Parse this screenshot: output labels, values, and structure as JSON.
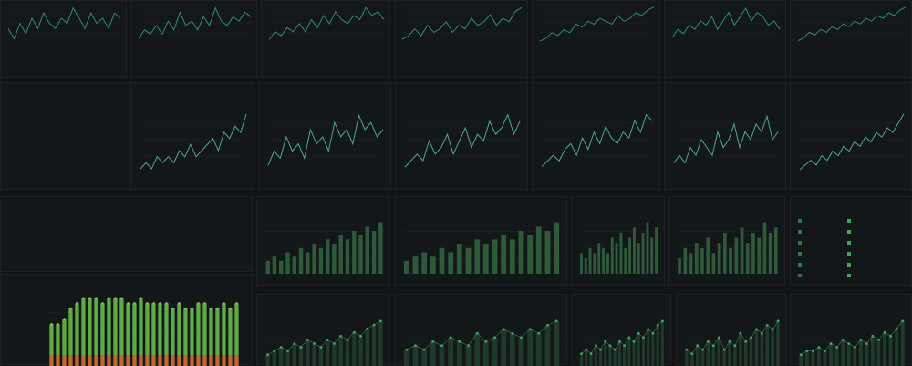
{
  "colors": {
    "background": "#121416",
    "panel": "#141719",
    "line": "#2b8c7a",
    "line_accent": "#4aa89a",
    "bar_green": "#2e5a3a",
    "bar_bright": "#5faa45",
    "bar_orange": "#c4662f",
    "dot_green": "#3ea85a"
  },
  "row1": {
    "panels": [
      {
        "title": "",
        "subtitle": "",
        "ticks": [
          "",
          "",
          ""
        ],
        "caption": "",
        "series": [
          6,
          4,
          7,
          5,
          8,
          6,
          9,
          7,
          6,
          8,
          7,
          10,
          8,
          6,
          9,
          7,
          8,
          6,
          9,
          8
        ]
      },
      {
        "title": "",
        "subtitle": "",
        "ticks": [
          "",
          "",
          ""
        ],
        "caption": "",
        "series": [
          5,
          7,
          6,
          8,
          6,
          9,
          7,
          11,
          8,
          9,
          7,
          10,
          8,
          12,
          9,
          8,
          10,
          9,
          11,
          10
        ]
      },
      {
        "title": "",
        "subtitle": "",
        "ticks": [
          "",
          "",
          ""
        ],
        "caption": "",
        "series": [
          4,
          6,
          5,
          7,
          6,
          8,
          6,
          9,
          7,
          10,
          8,
          11,
          9,
          8,
          10,
          9,
          12,
          10,
          11,
          9
        ]
      },
      {
        "title": "",
        "subtitle": "",
        "ticks": [
          "",
          "",
          ""
        ],
        "caption": "",
        "series": [
          5,
          6,
          8,
          6,
          9,
          7,
          8,
          10,
          7,
          9,
          8,
          11,
          9,
          10,
          12,
          9,
          11,
          10,
          13,
          14
        ]
      },
      {
        "title": "",
        "subtitle": "",
        "ticks": [
          "",
          "",
          ""
        ],
        "caption": "",
        "series": [
          3,
          4,
          6,
          5,
          7,
          6,
          9,
          8,
          10,
          9,
          11,
          10,
          9,
          12,
          10,
          11,
          13,
          12,
          14,
          15
        ]
      },
      {
        "title": "",
        "subtitle": "",
        "ticks": [
          "",
          "",
          ""
        ],
        "caption": "",
        "series": [
          6,
          8,
          7,
          9,
          8,
          10,
          9,
          11,
          8,
          10,
          12,
          9,
          11,
          13,
          10,
          12,
          11,
          9,
          10,
          8
        ]
      },
      {
        "title": "",
        "subtitle": "",
        "ticks": [
          "",
          "",
          ""
        ],
        "caption": "",
        "series": [
          4,
          5,
          7,
          6,
          8,
          7,
          9,
          8,
          10,
          9,
          11,
          10,
          12,
          11,
          13,
          12,
          14,
          13,
          15,
          16
        ]
      }
    ]
  },
  "summary": {
    "title": "",
    "subtitle": "",
    "lines": [
      "",
      "",
      "",
      "",
      "",
      "",
      "",
      ""
    ],
    "badge": ""
  },
  "row2": {
    "panels": [
      {
        "title": "",
        "subtitle": "",
        "caption": "",
        "series": [
          3,
          4,
          3,
          5,
          4,
          5,
          4,
          6,
          5,
          7,
          5,
          6,
          7,
          8,
          6,
          9,
          8,
          10,
          9,
          12
        ]
      },
      {
        "title": "",
        "subtitle": "",
        "caption": "",
        "series": [
          5,
          7,
          6,
          9,
          7,
          8,
          6,
          10,
          8,
          9,
          7,
          11,
          9,
          10,
          8,
          12,
          10,
          11,
          9,
          10
        ]
      },
      {
        "title": "",
        "subtitle": "",
        "caption": "",
        "series": [
          4,
          5,
          6,
          5,
          8,
          6,
          7,
          9,
          6,
          8,
          10,
          7,
          9,
          8,
          11,
          9,
          10,
          12,
          9,
          11
        ]
      },
      {
        "title": "",
        "subtitle": "",
        "caption": "",
        "series": [
          5,
          6,
          7,
          6,
          8,
          9,
          7,
          10,
          8,
          11,
          9,
          12,
          10,
          9,
          11,
          10,
          13,
          11,
          14,
          13
        ]
      },
      {
        "title": "",
        "subtitle": "",
        "caption": "",
        "series": [
          6,
          7,
          6,
          8,
          7,
          9,
          8,
          7,
          10,
          8,
          9,
          11,
          8,
          10,
          9,
          11,
          10,
          12,
          9,
          10
        ]
      },
      {
        "title": "",
        "subtitle": "",
        "caption": "",
        "series": [
          3,
          4,
          5,
          4,
          6,
          5,
          7,
          6,
          8,
          7,
          9,
          8,
          10,
          9,
          11,
          10,
          12,
          11,
          13,
          15
        ]
      }
    ]
  },
  "section": {
    "title": "",
    "lines": [
      "",
      "",
      ""
    ]
  },
  "row3": {
    "panels": [
      {
        "title": "",
        "caption": "",
        "values": [
          3,
          4,
          3,
          5,
          4,
          6,
          5,
          7,
          6,
          8,
          7,
          9,
          8,
          10,
          9,
          11,
          10,
          12
        ]
      },
      {
        "title": "",
        "caption": "",
        "values": [
          3,
          4,
          5,
          4,
          6,
          5,
          7,
          6,
          8,
          7,
          8,
          9,
          8,
          10,
          9,
          11,
          10,
          12
        ]
      },
      {
        "title": "",
        "caption": "",
        "values": [
          4,
          3,
          5,
          4,
          6,
          5,
          4,
          7,
          6,
          8,
          5,
          7,
          9,
          6,
          8,
          10,
          7,
          9
        ]
      },
      {
        "title": "",
        "caption": "",
        "values": [
          3,
          5,
          4,
          6,
          5,
          7,
          4,
          6,
          8,
          5,
          7,
          9,
          6,
          8,
          7,
          10,
          8,
          9
        ]
      }
    ],
    "legend": {
      "title": "",
      "items": [
        "",
        "",
        "",
        "",
        "",
        ""
      ],
      "values": [
        "",
        "",
        "",
        "",
        "",
        ""
      ]
    }
  },
  "stacked": {
    "title": "",
    "ticks": [
      "",
      "",
      ""
    ],
    "values_green": [
      6,
      6,
      7,
      9,
      10,
      11,
      11,
      11,
      10,
      11,
      11,
      11,
      10,
      10,
      11,
      10,
      10,
      10,
      10,
      9,
      10,
      9,
      9,
      10,
      10,
      9,
      9,
      10,
      9,
      10
    ],
    "values_orange": [
      2,
      2,
      2,
      2,
      2,
      2,
      2,
      2,
      2,
      2,
      2,
      2,
      2,
      2,
      2,
      2,
      2,
      2,
      2,
      2,
      2,
      2,
      2,
      2,
      2,
      2,
      2,
      2,
      2,
      2
    ]
  },
  "row4": {
    "panels": [
      {
        "title": "",
        "values": [
          3,
          4,
          5,
          4,
          6,
          5,
          7,
          6,
          5,
          7,
          6,
          8,
          7,
          9,
          8,
          10,
          11,
          12
        ]
      },
      {
        "title": "",
        "values": [
          4,
          5,
          4,
          6,
          5,
          7,
          6,
          5,
          8,
          6,
          7,
          9,
          8,
          7,
          9,
          8,
          10,
          11
        ]
      },
      {
        "title": "",
        "values": [
          3,
          4,
          3,
          5,
          4,
          6,
          5,
          4,
          6,
          5,
          7,
          6,
          8,
          7,
          9,
          8,
          10,
          11
        ]
      },
      {
        "title": "",
        "values": [
          4,
          3,
          5,
          4,
          6,
          5,
          7,
          4,
          6,
          5,
          8,
          6,
          7,
          9,
          8,
          10,
          9,
          11
        ]
      },
      {
        "title": "",
        "values": [
          3,
          4,
          4,
          5,
          4,
          6,
          5,
          7,
          6,
          5,
          7,
          6,
          8,
          7,
          9,
          8,
          10,
          12
        ]
      }
    ]
  }
}
